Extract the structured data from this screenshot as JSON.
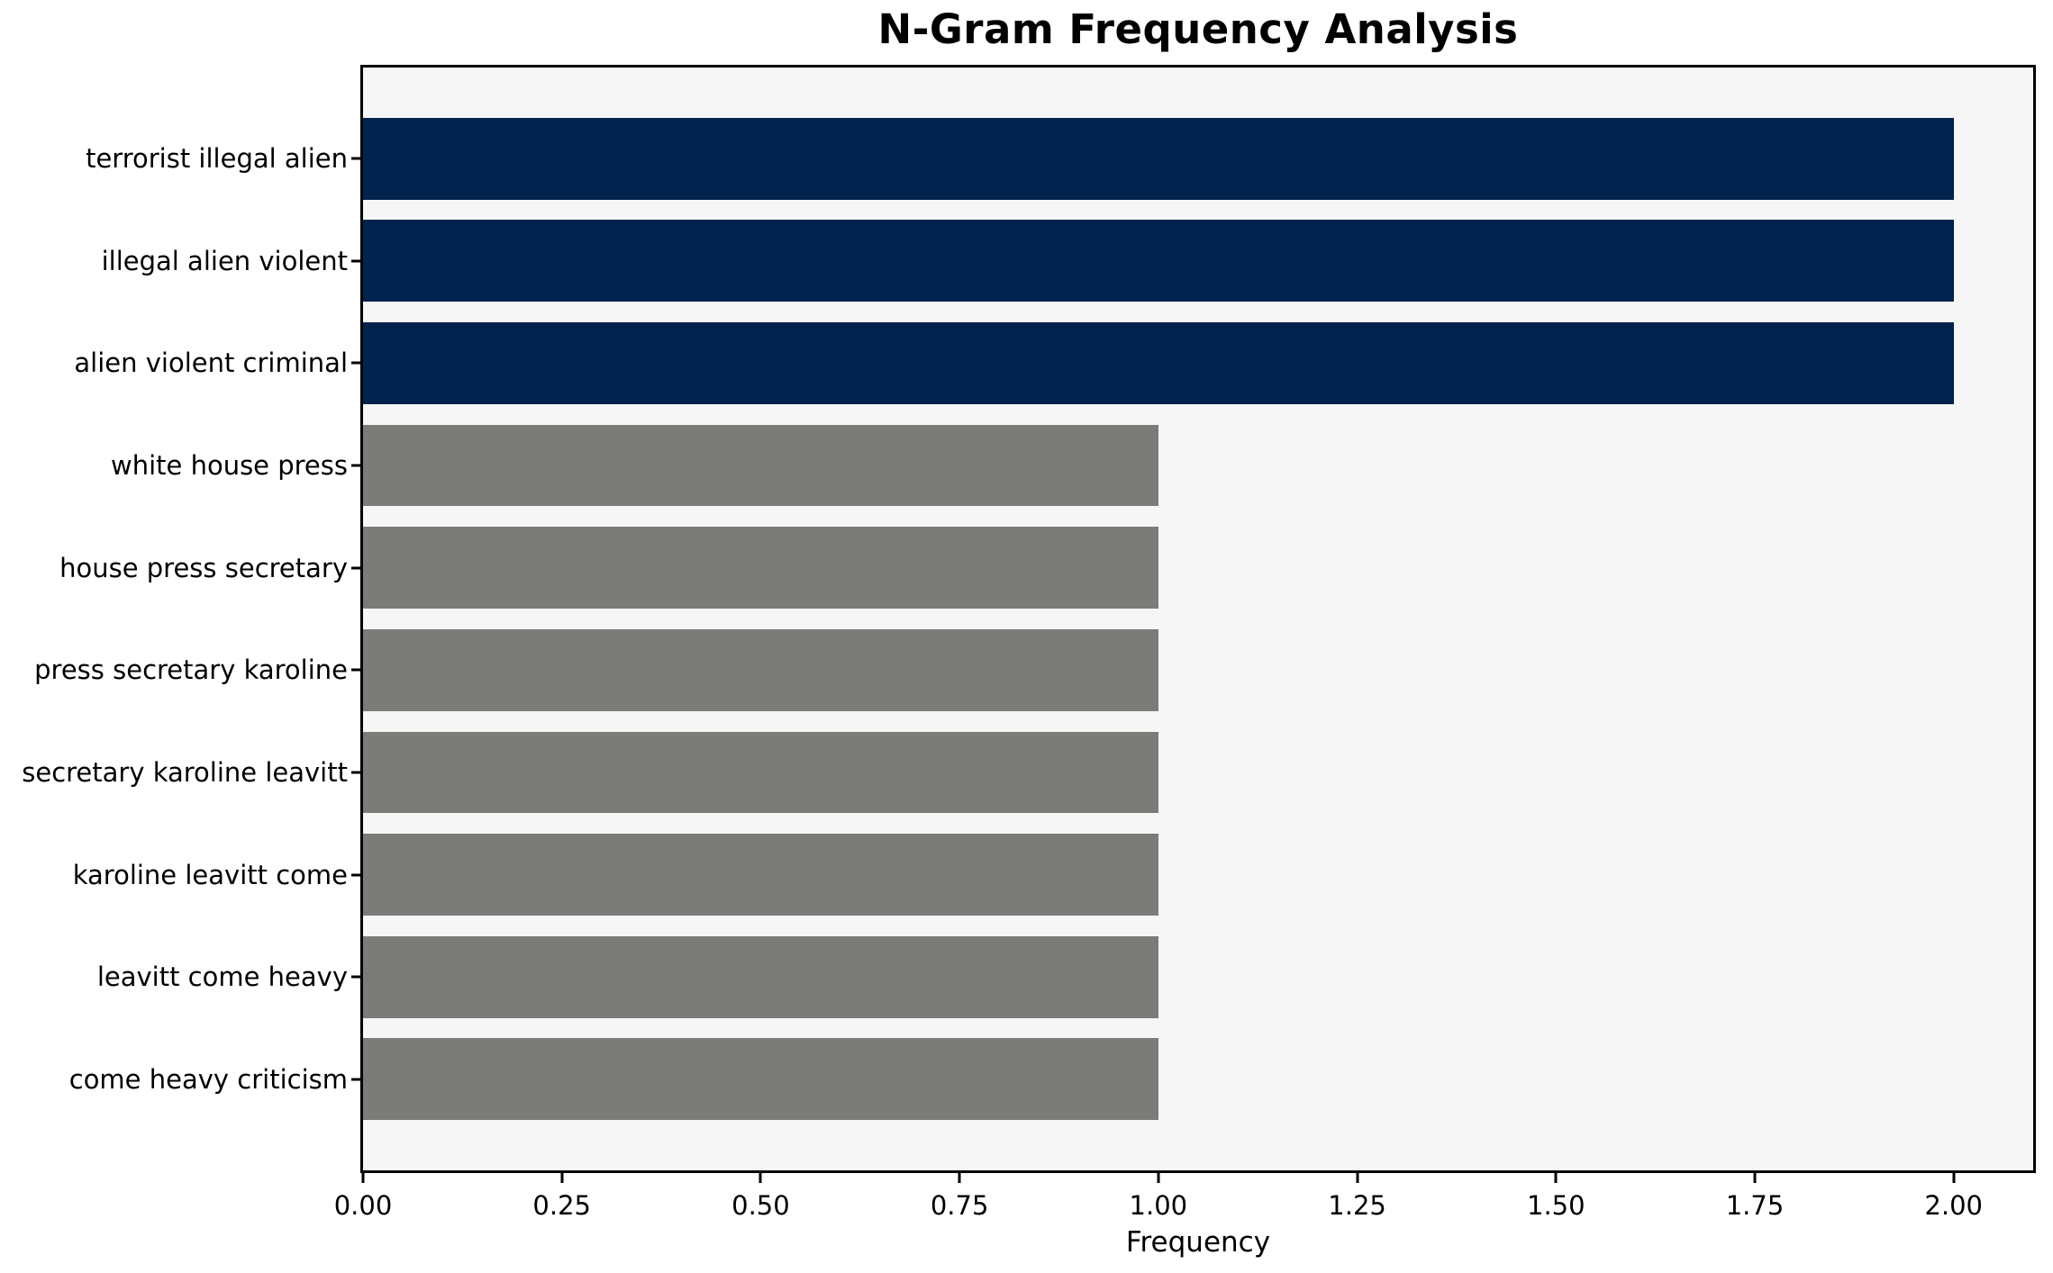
{
  "figure": {
    "background": "#ffffff"
  },
  "chart_data": {
    "type": "bar",
    "orientation": "horizontal",
    "title": "N-Gram Frequency Analysis",
    "xlabel": "Frequency",
    "ylabel": "",
    "categories": [
      "terrorist illegal alien",
      "illegal alien violent",
      "alien violent criminal",
      "white house press",
      "house press secretary",
      "press secretary karoline",
      "secretary karoline leavitt",
      "karoline leavitt come",
      "leavitt come heavy",
      "come heavy criticism"
    ],
    "values": [
      2,
      2,
      2,
      1,
      1,
      1,
      1,
      1,
      1,
      1
    ],
    "bar_colors": [
      "#00234e",
      "#00234e",
      "#00234e",
      "#7b7b78",
      "#7b7b78",
      "#7b7b78",
      "#7b7b78",
      "#7b7b78",
      "#7b7b78",
      "#7b7b78"
    ],
    "xlim": [
      0,
      2.1
    ],
    "xticks": [
      0,
      0.25,
      0.5,
      0.75,
      1.0,
      1.25,
      1.5,
      1.75,
      2.0
    ],
    "xtick_labels": [
      "0.00",
      "0.25",
      "0.50",
      "0.75",
      "1.00",
      "1.25",
      "1.50",
      "1.75",
      "2.00"
    ],
    "grid": false,
    "legend": null,
    "plot_background": "#f6f6f6",
    "accent_color": "#00234e",
    "muted_color": "#7b7b78",
    "bar_height_fraction": 0.8
  }
}
